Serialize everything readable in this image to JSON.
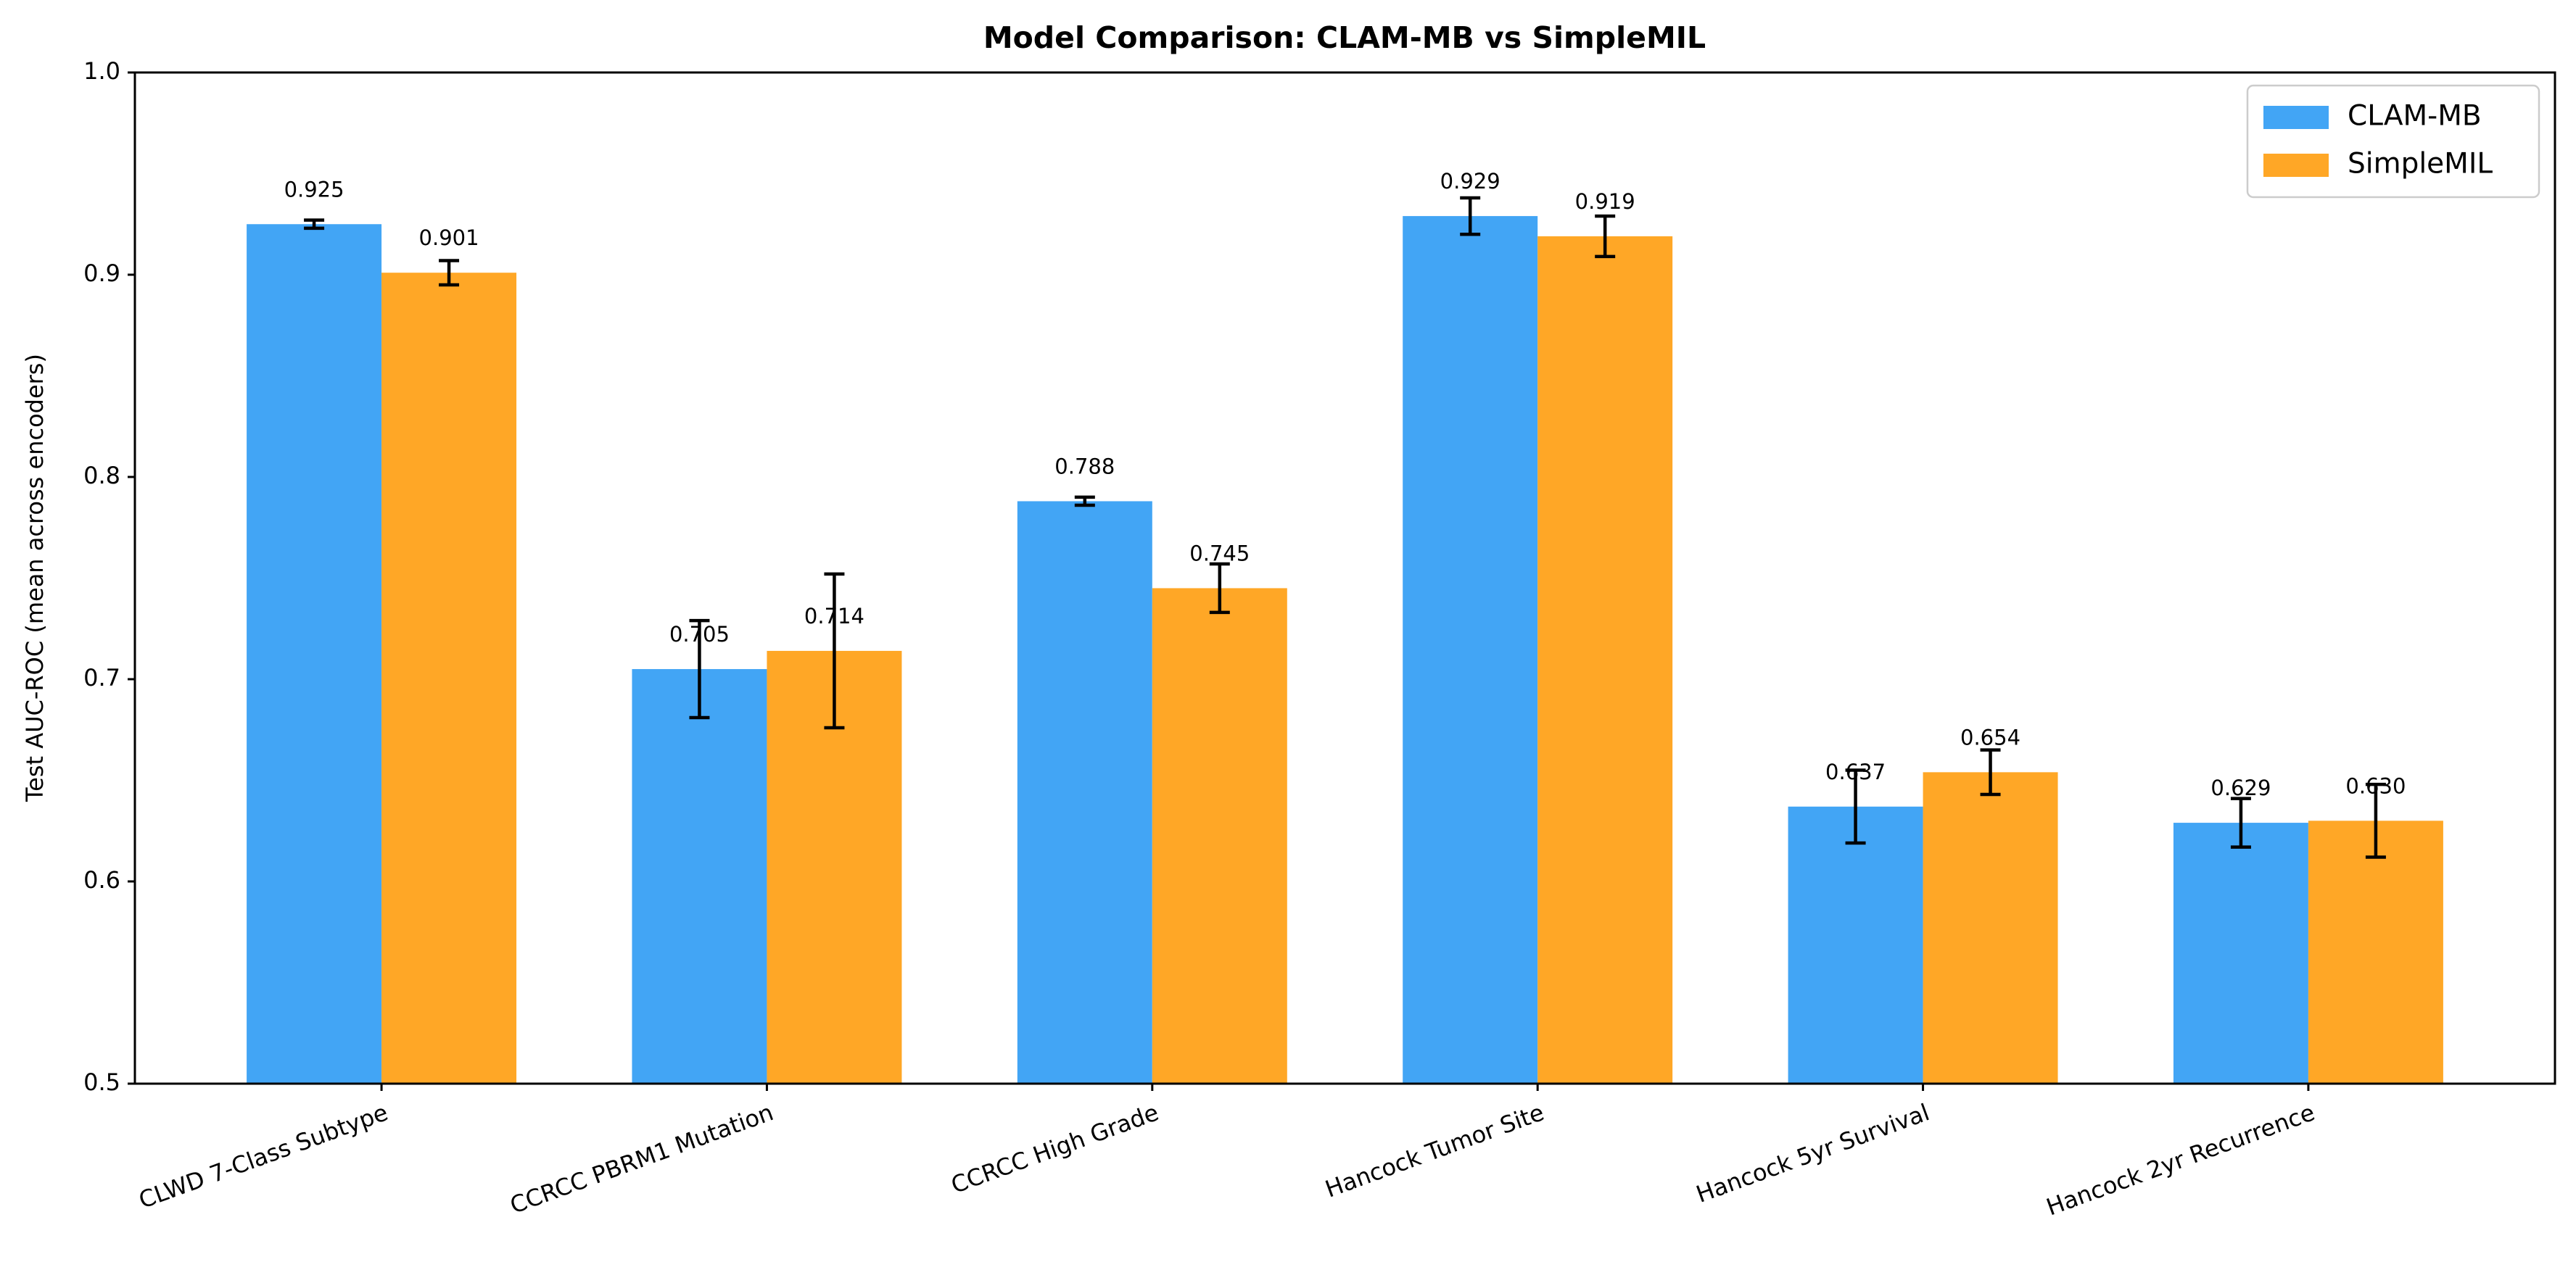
{
  "chart_data": {
    "type": "bar",
    "title": "Model Comparison: CLAM-MB vs SimpleMIL",
    "y_label": "Test AUC-ROC (mean across encoders)",
    "categories": [
      "CLWD 7-Class Subtype",
      "CCRCC PBRM1 Mutation",
      "CCRCC High Grade",
      "Hancock Tumor Site",
      "Hancock 5yr Survival",
      "Hancock 2yr Recurrence"
    ],
    "series": [
      {
        "name": "CLAM-MB",
        "color": "#42a5f5",
        "values": [
          0.925,
          0.705,
          0.788,
          0.929,
          0.637,
          0.629
        ],
        "errors": [
          0.002,
          0.024,
          0.002,
          0.009,
          0.018,
          0.012
        ],
        "value_labels": [
          "0.925",
          "0.705",
          "0.788",
          "0.929",
          "0.637",
          "0.629"
        ]
      },
      {
        "name": "SimpleMIL",
        "color": "#ffa726",
        "values": [
          0.901,
          0.714,
          0.745,
          0.919,
          0.654,
          0.63
        ],
        "errors": [
          0.006,
          0.038,
          0.012,
          0.01,
          0.011,
          0.018
        ],
        "value_labels": [
          "0.901",
          "0.714",
          "0.745",
          "0.919",
          "0.654",
          "0.630"
        ]
      }
    ],
    "ylim": [
      0.5,
      1
    ],
    "yticks": [
      0.5,
      0.6,
      0.7,
      0.8,
      0.9,
      {
        "value": 1,
        "label": "1.0"
      }
    ],
    "grid": false,
    "legend": "upper-right"
  }
}
